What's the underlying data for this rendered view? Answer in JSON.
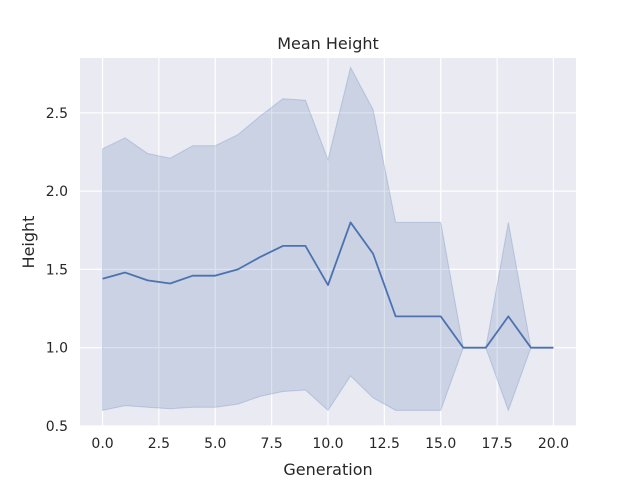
{
  "chart_data": {
    "type": "line",
    "title": "Mean Height",
    "xlabel": "Generation",
    "ylabel": "Height",
    "xlim": [
      -1,
      21
    ],
    "ylim": [
      0.5,
      2.85
    ],
    "xticks": [
      0.0,
      2.5,
      5.0,
      7.5,
      10.0,
      12.5,
      15.0,
      17.5,
      20.0
    ],
    "xtick_labels": [
      "0.0",
      "2.5",
      "5.0",
      "7.5",
      "10.0",
      "12.5",
      "15.0",
      "17.5",
      "20.0"
    ],
    "yticks": [
      0.5,
      1.0,
      1.5,
      2.0,
      2.5
    ],
    "ytick_labels": [
      "0.5",
      "1.0",
      "1.5",
      "2.0",
      "2.5"
    ],
    "grid": true,
    "series": [
      {
        "x": [
          0,
          1,
          2,
          3,
          4,
          5,
          6,
          7,
          8,
          9,
          10,
          11,
          12,
          13,
          14,
          15,
          16,
          17,
          18,
          19,
          20
        ],
        "values": [
          1.44,
          1.48,
          1.43,
          1.41,
          1.46,
          1.46,
          1.5,
          1.58,
          1.65,
          1.65,
          1.4,
          1.8,
          1.6,
          1.2,
          1.2,
          1.2,
          1.0,
          1.0,
          1.2,
          1.0,
          1.0
        ],
        "upper": [
          2.27,
          2.34,
          2.24,
          2.21,
          2.29,
          2.29,
          2.36,
          2.48,
          2.59,
          2.58,
          2.2,
          2.79,
          2.52,
          1.8,
          1.8,
          1.8,
          1.0,
          1.0,
          1.8,
          1.0,
          1.0
        ],
        "lower": [
          0.6,
          0.63,
          0.62,
          0.61,
          0.62,
          0.62,
          0.64,
          0.69,
          0.72,
          0.73,
          0.6,
          0.82,
          0.68,
          0.6,
          0.6,
          0.6,
          1.0,
          1.0,
          0.6,
          1.0,
          1.0
        ],
        "color": "#4c72b0",
        "band_color": "#4c72b0"
      }
    ],
    "colors": {
      "plot_background": "#eaeaf2",
      "grid": "#ffffff",
      "text": "#262626"
    }
  }
}
